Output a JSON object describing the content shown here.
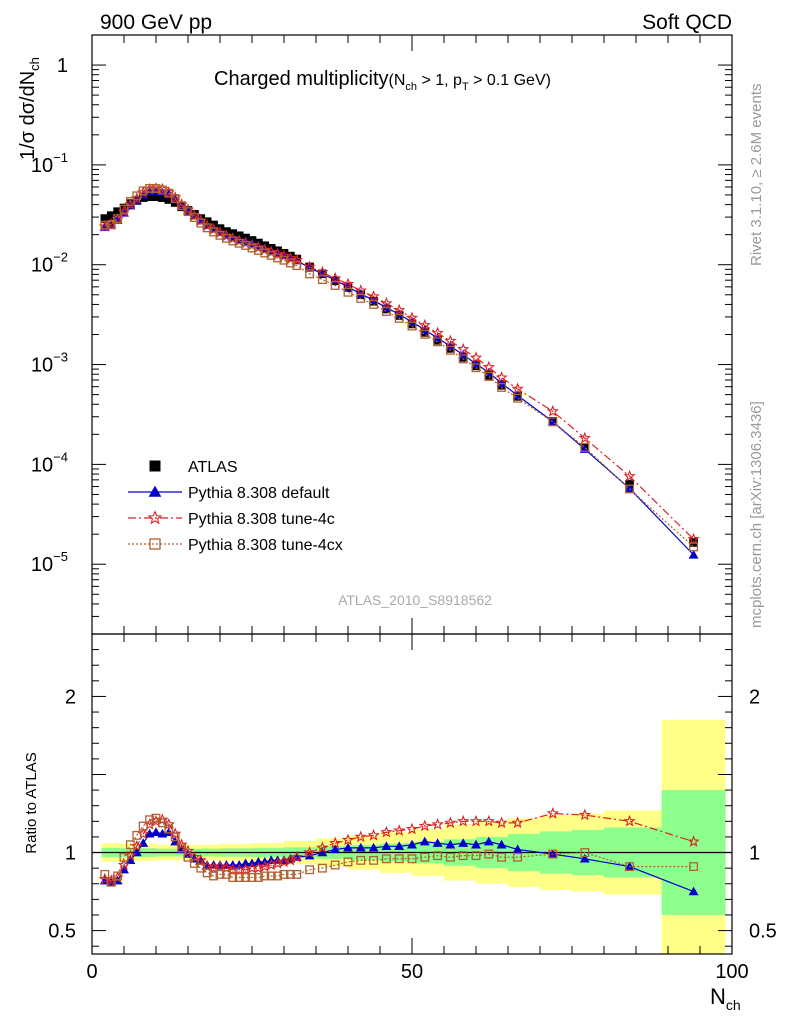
{
  "header": {
    "left": "900 GeV pp",
    "right": "Soft QCD"
  },
  "side_text": {
    "rivet": "Rivet 3.1.10, ≥ 2.6M events",
    "mcplots": "mcplots.cern.ch [arXiv:1306.3436]"
  },
  "chart_data": [
    {
      "type": "scatter",
      "panel": "main",
      "title": "Charged multiplicity",
      "title_sub": {
        "n_open": "(N",
        "n_sub": "ch",
        "n_rest": " > 1, p",
        "p_sub": "T",
        "p_rest": " > 0.1 GeV)"
      },
      "ylabel": {
        "main": "1/σ dσ/dN",
        "sub": "ch"
      },
      "analysis_label": "ATLAS_2010_S8918562",
      "yscale": "log",
      "xlim": [
        0,
        100
      ],
      "ylim": [
        2e-06,
        2
      ],
      "ytick_labels": [
        {
          "mant": "10",
          "exp": "−5",
          "value": 1e-05
        },
        {
          "mant": "10",
          "exp": "−4",
          "value": 0.0001
        },
        {
          "mant": "10",
          "exp": "−3",
          "value": 0.001
        },
        {
          "mant": "10",
          "exp": "−2",
          "value": 0.01
        },
        {
          "mant": "10",
          "exp": "−1",
          "value": 0.1
        },
        {
          "mant": "1",
          "exp": "",
          "value": 1
        }
      ],
      "legend_position": "lower-left",
      "series": [
        {
          "name": "ATLAS",
          "color": "#000000",
          "marker": "square-filled",
          "line": "none",
          "x": [
            2,
            3,
            4,
            5,
            6,
            7,
            8,
            9,
            10,
            11,
            12,
            13,
            14,
            15,
            16,
            17,
            18,
            19,
            20,
            21,
            22,
            23,
            24,
            25,
            26,
            27,
            28,
            29,
            30,
            31,
            32,
            34,
            36,
            38,
            40,
            42,
            44,
            46,
            48,
            50,
            52,
            54,
            56,
            58,
            60,
            62,
            64,
            66.5,
            72,
            77,
            84,
            94
          ],
          "y": [
            0.029,
            0.031,
            0.034,
            0.037,
            0.041,
            0.044,
            0.047,
            0.048,
            0.048,
            0.047,
            0.045,
            0.042,
            0.038,
            0.035,
            0.032,
            0.029,
            0.027,
            0.025,
            0.023,
            0.0215,
            0.0205,
            0.0195,
            0.0185,
            0.0175,
            0.0165,
            0.0155,
            0.0146,
            0.0138,
            0.013,
            0.0122,
            0.0114,
            0.0095,
            0.0081,
            0.0069,
            0.0059,
            0.005,
            0.0043,
            0.0036,
            0.0031,
            0.00255,
            0.0021,
            0.00175,
            0.00145,
            0.00118,
            0.00097,
            0.00078,
            0.00062,
            0.00048,
            0.00027,
            0.000148,
            6.3e-05,
            1.65e-05
          ]
        },
        {
          "name": "Pythia 8.308 default",
          "color": "#0000cc",
          "marker": "triangle-filled",
          "line": "solid",
          "x": [
            2,
            3,
            4,
            5,
            6,
            7,
            8,
            9,
            10,
            11,
            12,
            13,
            14,
            15,
            16,
            17,
            18,
            19,
            20,
            21,
            22,
            23,
            24,
            25,
            26,
            27,
            28,
            29,
            30,
            31,
            32,
            34,
            36,
            38,
            40,
            42,
            44,
            46,
            48,
            50,
            52,
            54,
            56,
            58,
            60,
            62,
            64,
            66.5,
            72,
            77,
            84,
            94
          ],
          "y": [
            0.0238,
            0.0251,
            0.028,
            0.033,
            0.039,
            0.044,
            0.05,
            0.054,
            0.054,
            0.053,
            0.051,
            0.045,
            0.039,
            0.035,
            0.031,
            0.0276,
            0.0248,
            0.0229,
            0.0211,
            0.0198,
            0.0189,
            0.0179,
            0.0172,
            0.0163,
            0.0155,
            0.0146,
            0.0139,
            0.0131,
            0.0124,
            0.0117,
            0.011,
            0.0093,
            0.0081,
            0.007,
            0.006,
            0.0051,
            0.0044,
            0.0037,
            0.0032,
            0.00266,
            0.00223,
            0.00184,
            0.00153,
            0.00125,
            0.00102,
            0.00083,
            0.00065,
            0.00049,
            0.000268,
            0.000142,
            5.73e-05,
            1.24e-05
          ]
        },
        {
          "name": "Pythia 8.308 tune-4c",
          "color": "#dd2222",
          "marker": "star-open",
          "line": "dashdot",
          "x": [
            2,
            3,
            4,
            5,
            6,
            7,
            8,
            9,
            10,
            11,
            12,
            13,
            14,
            15,
            16,
            17,
            18,
            19,
            20,
            21,
            22,
            23,
            24,
            25,
            26,
            27,
            28,
            29,
            30,
            31,
            32,
            34,
            36,
            38,
            40,
            42,
            44,
            46,
            48,
            50,
            52,
            54,
            56,
            58,
            60,
            62,
            64,
            66.5,
            72,
            77,
            84,
            94
          ],
          "y": [
            0.0241,
            0.0254,
            0.0285,
            0.034,
            0.04,
            0.046,
            0.053,
            0.057,
            0.058,
            0.057,
            0.053,
            0.047,
            0.04,
            0.0355,
            0.031,
            0.0276,
            0.0246,
            0.0226,
            0.0209,
            0.0194,
            0.0183,
            0.0173,
            0.0165,
            0.0157,
            0.0149,
            0.0141,
            0.0134,
            0.0128,
            0.0122,
            0.0116,
            0.0111,
            0.0095,
            0.0084,
            0.0073,
            0.0064,
            0.0055,
            0.0048,
            0.0041,
            0.0035,
            0.00293,
            0.00247,
            0.00207,
            0.00172,
            0.00142,
            0.00117,
            0.00094,
            0.00074,
            0.00057,
            0.00034,
            0.000183,
            7.6e-05,
            1.78e-05
          ]
        },
        {
          "name": "Pythia 8.308 tune-4cx",
          "color": "#b06030",
          "marker": "square-open",
          "line": "dotted",
          "x": [
            2,
            3,
            4,
            5,
            6,
            7,
            8,
            9,
            10,
            11,
            12,
            13,
            14,
            15,
            16,
            17,
            18,
            19,
            20,
            21,
            22,
            23,
            24,
            25,
            26,
            27,
            28,
            29,
            30,
            31,
            32,
            34,
            36,
            38,
            40,
            42,
            44,
            46,
            48,
            50,
            52,
            54,
            56,
            58,
            60,
            62,
            64,
            66.5,
            72,
            77,
            84,
            94
          ],
          "y": [
            0.0249,
            0.0251,
            0.0289,
            0.036,
            0.043,
            0.049,
            0.055,
            0.058,
            0.058,
            0.056,
            0.052,
            0.046,
            0.039,
            0.034,
            0.0297,
            0.0261,
            0.0234,
            0.0213,
            0.0197,
            0.0184,
            0.0173,
            0.0164,
            0.0156,
            0.0147,
            0.0139,
            0.0131,
            0.0124,
            0.0117,
            0.0111,
            0.0104,
            0.0098,
            0.0081,
            0.0071,
            0.0062,
            0.0053,
            0.0046,
            0.004,
            0.0034,
            0.0029,
            0.00243,
            0.00201,
            0.00169,
            0.00139,
            0.00114,
            0.00093,
            0.00076,
            0.00059,
            0.00046,
            0.000267,
            0.000148,
            5.67e-05,
            1.49e-05
          ]
        }
      ]
    },
    {
      "type": "scatter",
      "panel": "ratio",
      "ylabel": "Ratio to ATLAS",
      "xlabel": {
        "main": "N",
        "sub": "ch"
      },
      "xlim": [
        0,
        100
      ],
      "ylim": [
        0.35,
        2.4
      ],
      "xticks": [
        0,
        50,
        100
      ],
      "xtick_labels": [
        "0",
        "50",
        "100"
      ],
      "yticks": [
        0.5,
        1,
        2
      ],
      "ytick_labels": [
        "0.5",
        "1",
        "2"
      ],
      "reference_line": 1,
      "bands": [
        {
          "name": "inner",
          "color": "#8cff8c",
          "x_edges": [
            1.5,
            5,
            10,
            15,
            20,
            25,
            30,
            35,
            40,
            45,
            50,
            55,
            60,
            65,
            70,
            75,
            80,
            89,
            99
          ],
          "half_width": [
            0.03,
            0.028,
            0.025,
            0.025,
            0.027,
            0.03,
            0.034,
            0.04,
            0.048,
            0.058,
            0.07,
            0.085,
            0.1,
            0.12,
            0.135,
            0.145,
            0.16,
            0.4
          ]
        },
        {
          "name": "outer",
          "color": "#ffff88",
          "x_edges": [
            1.5,
            5,
            10,
            15,
            20,
            25,
            30,
            35,
            40,
            45,
            50,
            55,
            60,
            65,
            70,
            75,
            80,
            89,
            99
          ],
          "half_width": [
            0.06,
            0.055,
            0.05,
            0.05,
            0.055,
            0.06,
            0.075,
            0.09,
            0.11,
            0.13,
            0.15,
            0.18,
            0.2,
            0.22,
            0.24,
            0.25,
            0.27,
            0.85
          ]
        }
      ],
      "series": [
        {
          "name": "Pythia 8.308 default",
          "color": "#0000cc",
          "marker": "triangle-filled",
          "line": "solid",
          "x": [
            2,
            3,
            4,
            5,
            6,
            7,
            8,
            9,
            10,
            11,
            12,
            13,
            14,
            15,
            16,
            17,
            18,
            19,
            20,
            21,
            22,
            23,
            24,
            25,
            26,
            27,
            28,
            29,
            30,
            31,
            32,
            34,
            36,
            38,
            40,
            42,
            44,
            46,
            48,
            50,
            52,
            54,
            56,
            58,
            60,
            62,
            64,
            66.5,
            72,
            77,
            84,
            94
          ],
          "y": [
            0.82,
            0.81,
            0.82,
            0.89,
            0.95,
            1.0,
            1.06,
            1.12,
            1.13,
            1.12,
            1.13,
            1.07,
            1.02,
            0.99,
            0.96,
            0.95,
            0.92,
            0.92,
            0.92,
            0.92,
            0.92,
            0.92,
            0.93,
            0.93,
            0.94,
            0.94,
            0.95,
            0.95,
            0.95,
            0.96,
            0.97,
            0.98,
            1.0,
            1.02,
            1.03,
            1.03,
            1.03,
            1.04,
            1.04,
            1.05,
            1.07,
            1.06,
            1.05,
            1.06,
            1.05,
            1.07,
            1.05,
            1.02,
            0.99,
            0.96,
            0.91,
            0.75
          ]
        },
        {
          "name": "Pythia 8.308 tune-4c",
          "color": "#dd2222",
          "marker": "star-open",
          "line": "dashdot",
          "x": [
            2,
            3,
            4,
            5,
            6,
            7,
            8,
            9,
            10,
            11,
            12,
            13,
            14,
            15,
            16,
            17,
            18,
            19,
            20,
            21,
            22,
            23,
            24,
            25,
            26,
            27,
            28,
            29,
            30,
            31,
            32,
            34,
            36,
            38,
            40,
            42,
            44,
            46,
            48,
            50,
            52,
            54,
            56,
            58,
            60,
            62,
            64,
            66.5,
            72,
            77,
            84,
            94
          ],
          "y": [
            0.83,
            0.82,
            0.84,
            0.92,
            0.98,
            1.04,
            1.12,
            1.18,
            1.2,
            1.21,
            1.18,
            1.12,
            1.05,
            1.01,
            0.97,
            0.95,
            0.91,
            0.9,
            0.91,
            0.9,
            0.89,
            0.89,
            0.89,
            0.9,
            0.9,
            0.91,
            0.92,
            0.93,
            0.94,
            0.95,
            0.97,
            1.0,
            1.03,
            1.06,
            1.08,
            1.1,
            1.11,
            1.13,
            1.14,
            1.15,
            1.17,
            1.18,
            1.19,
            1.2,
            1.2,
            1.2,
            1.19,
            1.19,
            1.25,
            1.24,
            1.2,
            1.07
          ]
        },
        {
          "name": "Pythia 8.308 tune-4cx",
          "color": "#b06030",
          "marker": "square-open",
          "line": "dotted",
          "x": [
            2,
            3,
            4,
            5,
            6,
            7,
            8,
            9,
            10,
            11,
            12,
            13,
            14,
            15,
            16,
            17,
            18,
            19,
            20,
            21,
            22,
            23,
            24,
            25,
            26,
            27,
            28,
            29,
            30,
            31,
            32,
            34,
            36,
            38,
            40,
            42,
            44,
            46,
            48,
            50,
            52,
            54,
            56,
            58,
            60,
            62,
            64,
            66.5,
            72,
            77,
            84,
            94
          ],
          "y": [
            0.86,
            0.81,
            0.85,
            0.97,
            1.05,
            1.11,
            1.17,
            1.21,
            1.22,
            1.19,
            1.15,
            1.1,
            1.03,
            0.97,
            0.93,
            0.9,
            0.87,
            0.85,
            0.86,
            0.86,
            0.84,
            0.84,
            0.84,
            0.84,
            0.84,
            0.85,
            0.85,
            0.85,
            0.86,
            0.86,
            0.86,
            0.89,
            0.9,
            0.92,
            0.94,
            0.95,
            0.95,
            0.96,
            0.96,
            0.96,
            0.97,
            0.98,
            0.97,
            0.98,
            0.98,
            0.99,
            0.97,
            0.97,
            0.99,
            1.0,
            0.91,
            0.91
          ]
        }
      ]
    }
  ]
}
